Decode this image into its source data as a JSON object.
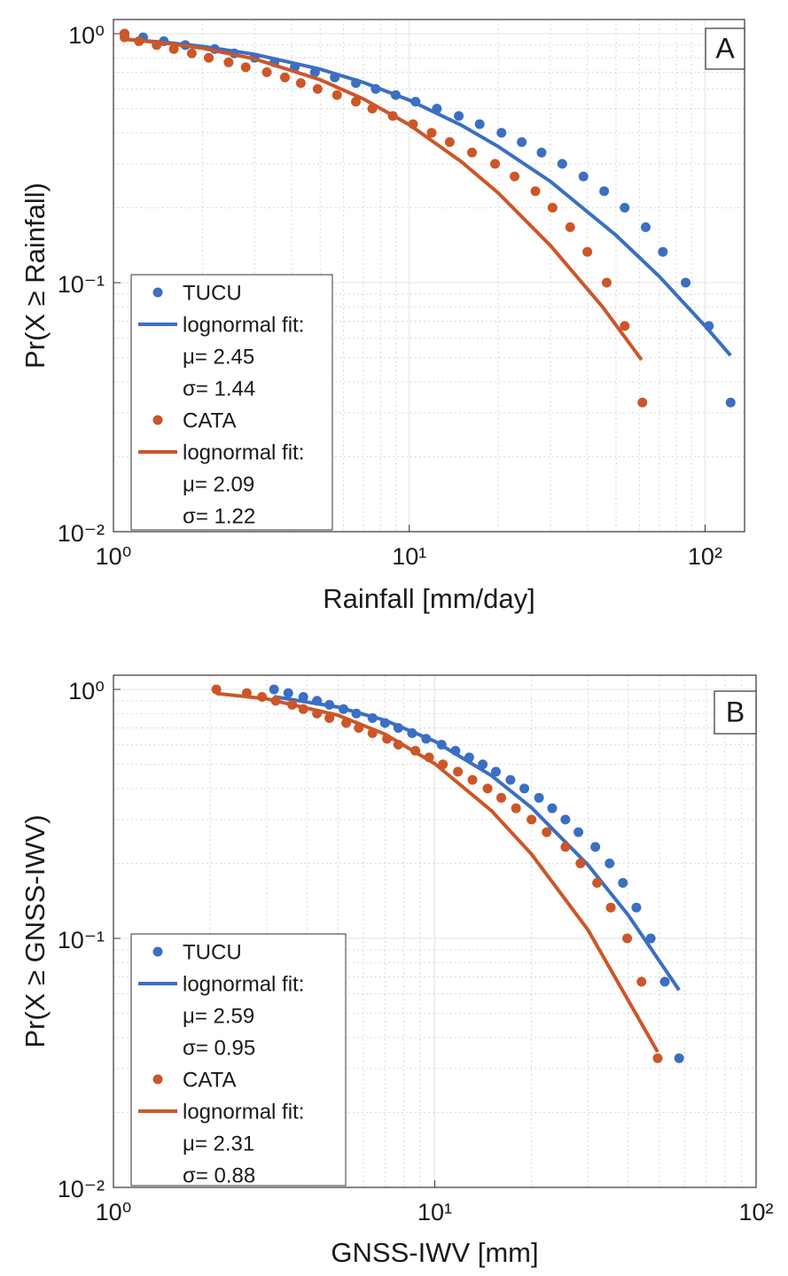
{
  "chart_data": [
    {
      "type": "scatter",
      "panel_label": "A",
      "xlabel": "Rainfall [mm/day]",
      "ylabel": "Pr(X ≥ Rainfall)",
      "xscale": "log",
      "yscale": "log",
      "grid": true,
      "minor_grid": true,
      "legend": "lower left",
      "xlim": [
        1,
        136
      ],
      "ylim": [
        0.01,
        1.14
      ],
      "xticks": [
        {
          "value": 1,
          "label": "10⁰"
        },
        {
          "value": 10,
          "label": "10¹"
        },
        {
          "value": 100,
          "label": "10²"
        }
      ],
      "yticks": [
        {
          "value": 0.01,
          "label": "10⁻²"
        },
        {
          "value": 0.1,
          "label": "10⁻¹"
        },
        {
          "value": 1,
          "label": "10⁰"
        }
      ],
      "series": [
        {
          "name": "TUCU",
          "mode": "markers",
          "color": "#3b6fc1",
          "x": [
            1.09,
            1.26,
            1.48,
            1.75,
            2.2,
            2.56,
            3.0,
            3.5,
            4.1,
            4.8,
            5.6,
            6.6,
            7.7,
            9.0,
            10.5,
            12.4,
            14.7,
            17.3,
            20.5,
            24,
            28,
            32.9,
            38.8,
            45.6,
            53.5,
            63,
            72,
            86,
            103,
            122
          ],
          "values": [
            1.0,
            0.967,
            0.933,
            0.9,
            0.867,
            0.833,
            0.8,
            0.767,
            0.733,
            0.7,
            0.667,
            0.633,
            0.6,
            0.567,
            0.533,
            0.5,
            0.467,
            0.433,
            0.4,
            0.367,
            0.333,
            0.3,
            0.267,
            0.233,
            0.2,
            0.167,
            0.133,
            0.1,
            0.067,
            0.033
          ]
        },
        {
          "name": "lognormal fit:",
          "params": [
            "μ= 2.45",
            "σ= 1.44"
          ],
          "mode": "line",
          "color": "#3b6fc1",
          "x": [
            1.09,
            1.5,
            2,
            3,
            5,
            7,
            10,
            15,
            20,
            30,
            50,
            70,
            100,
            122
          ],
          "values": [
            0.95,
            0.922,
            0.889,
            0.826,
            0.72,
            0.637,
            0.541,
            0.429,
            0.352,
            0.255,
            0.155,
            0.106,
            0.067,
            0.051
          ]
        },
        {
          "name": "CATA",
          "mode": "markers",
          "color": "#cc5628",
          "x": [
            1.09,
            1.09,
            1.22,
            1.4,
            1.6,
            1.84,
            2.1,
            2.45,
            2.8,
            3.3,
            3.8,
            4.3,
            4.9,
            5.7,
            6.6,
            7.5,
            8.8,
            10.3,
            11.9,
            13.7,
            16.3,
            19.5,
            22.7,
            26.7,
            30.5,
            35,
            40,
            46.5,
            53.5,
            61.4
          ],
          "values": [
            1.0,
            0.967,
            0.933,
            0.9,
            0.867,
            0.833,
            0.8,
            0.767,
            0.733,
            0.7,
            0.667,
            0.633,
            0.6,
            0.567,
            0.533,
            0.5,
            0.467,
            0.433,
            0.4,
            0.367,
            0.333,
            0.3,
            0.267,
            0.233,
            0.2,
            0.167,
            0.133,
            0.1,
            0.067,
            0.033
          ]
        },
        {
          "name": "lognormal fit:",
          "params": [
            "μ= 2.09",
            "σ= 1.22"
          ],
          "mode": "line",
          "color": "#cc5628",
          "x": [
            1.09,
            1.5,
            2,
            3,
            5,
            7,
            10,
            15,
            20,
            30,
            45,
            61
          ],
          "values": [
            0.95,
            0.916,
            0.874,
            0.792,
            0.653,
            0.547,
            0.431,
            0.306,
            0.229,
            0.141,
            0.08,
            0.049
          ]
        }
      ]
    },
    {
      "type": "scatter",
      "panel_label": "B",
      "xlabel": "GNSS-IWV [mm]",
      "ylabel": "Pr(X ≥ GNSS-IWV)",
      "xscale": "log",
      "yscale": "log",
      "grid": true,
      "minor_grid": true,
      "legend": "lower left",
      "xlim": [
        1,
        100
      ],
      "ylim": [
        0.01,
        1.14
      ],
      "xticks": [
        {
          "value": 1,
          "label": "10⁰"
        },
        {
          "value": 10,
          "label": "10¹"
        },
        {
          "value": 100,
          "label": "10²"
        }
      ],
      "yticks": [
        {
          "value": 0.01,
          "label": "10⁻²"
        },
        {
          "value": 0.1,
          "label": "10⁻¹"
        },
        {
          "value": 1,
          "label": "10⁰"
        }
      ],
      "series": [
        {
          "name": "TUCU",
          "mode": "markers",
          "color": "#3b6fc1",
          "x": [
            3.16,
            3.5,
            3.9,
            4.3,
            4.7,
            5.2,
            5.7,
            6.4,
            7.0,
            7.7,
            8.5,
            9.4,
            10.5,
            11.6,
            12.8,
            14.1,
            15.5,
            17.2,
            19,
            21.1,
            23.2,
            25.5,
            28,
            31.6,
            35,
            38.5,
            42.4,
            47,
            52,
            57.6
          ],
          "values": [
            1.0,
            0.967,
            0.933,
            0.9,
            0.867,
            0.833,
            0.8,
            0.767,
            0.733,
            0.7,
            0.667,
            0.633,
            0.6,
            0.567,
            0.533,
            0.5,
            0.467,
            0.433,
            0.4,
            0.367,
            0.333,
            0.3,
            0.267,
            0.233,
            0.2,
            0.167,
            0.133,
            0.1,
            0.067,
            0.033
          ]
        },
        {
          "name": "lognormal fit:",
          "params": [
            "μ= 2.59",
            "σ= 0.95"
          ],
          "mode": "line",
          "color": "#3b6fc1",
          "x": [
            3.16,
            5,
            7,
            10,
            15,
            20,
            30,
            40,
            57.6
          ],
          "values": [
            0.935,
            0.849,
            0.751,
            0.619,
            0.451,
            0.335,
            0.197,
            0.124,
            0.062
          ]
        },
        {
          "name": "CATA",
          "mode": "markers",
          "color": "#cc5628",
          "x": [
            2.09,
            2.6,
            2.9,
            3.2,
            3.6,
            3.9,
            4.3,
            4.7,
            5.3,
            5.8,
            6.4,
            7.1,
            7.7,
            8.7,
            9.6,
            10.6,
            11.8,
            13.1,
            14.6,
            16.1,
            17.9,
            20,
            22.3,
            25.5,
            28.4,
            32,
            35.3,
            39.7,
            44,
            49.4
          ],
          "values": [
            1.0,
            0.967,
            0.933,
            0.9,
            0.867,
            0.833,
            0.8,
            0.767,
            0.733,
            0.7,
            0.667,
            0.633,
            0.6,
            0.567,
            0.533,
            0.5,
            0.467,
            0.433,
            0.4,
            0.367,
            0.333,
            0.3,
            0.267,
            0.233,
            0.2,
            0.167,
            0.133,
            0.1,
            0.067,
            0.033
          ]
        },
        {
          "name": "lognormal fit:",
          "params": [
            "μ= 2.31",
            "σ= 0.88"
          ],
          "mode": "line",
          "color": "#cc5628",
          "x": [
            2.09,
            3,
            5,
            7,
            10,
            15,
            20,
            30,
            49.4
          ],
          "values": [
            0.963,
            0.916,
            0.787,
            0.661,
            0.503,
            0.326,
            0.218,
            0.108,
            0.035
          ]
        }
      ]
    }
  ]
}
